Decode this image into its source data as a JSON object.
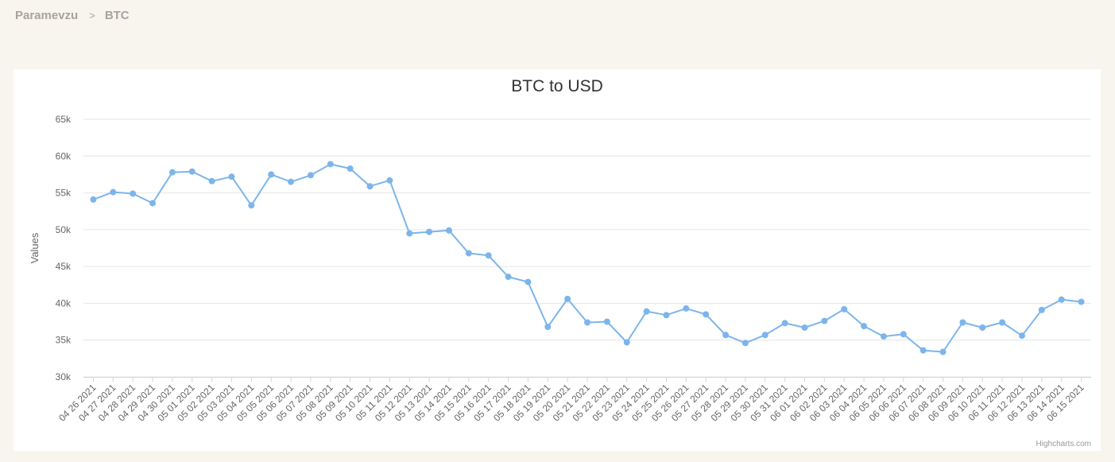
{
  "breadcrumb": {
    "root": "Paramevzu",
    "separator": ">",
    "current": "BTC"
  },
  "credits": "Highcharts.com",
  "colors": {
    "background": "#f8f4ee",
    "series": "#7cb5ec",
    "grid": "#e6e6e6"
  },
  "chart_data": {
    "type": "line",
    "title": "BTC to USD",
    "xlabel": "",
    "ylabel": "Values",
    "ylim": [
      30000,
      65000
    ],
    "yticks": [
      30000,
      35000,
      40000,
      45000,
      50000,
      55000,
      60000,
      65000
    ],
    "ytick_labels": [
      "30k",
      "35k",
      "40k",
      "45k",
      "50k",
      "55k",
      "60k",
      "65k"
    ],
    "grid": true,
    "legend": "none",
    "categories": [
      "04 26 2021",
      "04 27 2021",
      "04 28 2021",
      "04 29 2021",
      "04 30 2021",
      "05 01 2021",
      "05 02 2021",
      "05 03 2021",
      "05 04 2021",
      "05 05 2021",
      "05 06 2021",
      "05 07 2021",
      "05 08 2021",
      "05 09 2021",
      "05 10 2021",
      "05 11 2021",
      "05 12 2021",
      "05 13 2021",
      "05 14 2021",
      "05 15 2021",
      "05 16 2021",
      "05 17 2021",
      "05 18 2021",
      "05 19 2021",
      "05 20 2021",
      "05 21 2021",
      "05 22 2021",
      "05 23 2021",
      "05 24 2021",
      "05 25 2021",
      "05 26 2021",
      "05 27 2021",
      "05 28 2021",
      "05 29 2021",
      "05 30 2021",
      "05 31 2021",
      "06 01 2021",
      "06 02 2021",
      "06 03 2021",
      "06 04 2021",
      "06 05 2021",
      "06 06 2021",
      "06 07 2021",
      "06 08 2021",
      "06 09 2021",
      "06 10 2021",
      "06 11 2021",
      "06 12 2021",
      "06 13 2021",
      "06 14 2021",
      "06 15 2021"
    ],
    "series": [
      {
        "name": "",
        "values": [
          54100,
          55100,
          54900,
          53600,
          57800,
          57900,
          56600,
          57200,
          53300,
          57500,
          56500,
          57400,
          58900,
          58300,
          55900,
          56700,
          49500,
          49700,
          49900,
          46800,
          46500,
          43600,
          42900,
          36800,
          40600,
          37400,
          37500,
          34700,
          38900,
          38400,
          39300,
          38500,
          35700,
          34600,
          35700,
          37300,
          36700,
          37600,
          39200,
          36900,
          35500,
          35800,
          33600,
          33400,
          37400,
          36700,
          37400,
          35600,
          39100,
          40500,
          40200
        ]
      }
    ]
  }
}
